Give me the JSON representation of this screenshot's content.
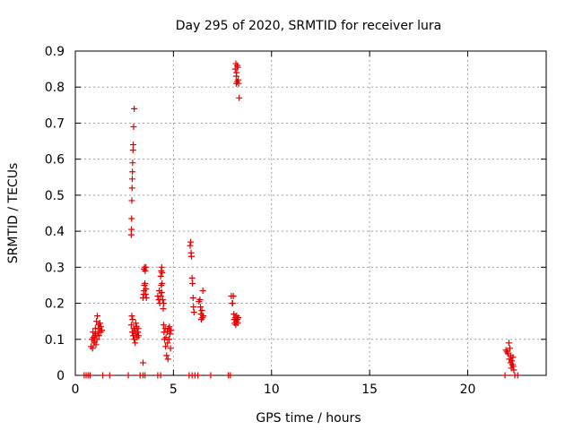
{
  "chart_data": {
    "type": "scatter",
    "title": "Day 295 of 2020, SRMTID for receiver lura",
    "xlabel": "GPS time / hours",
    "ylabel": "SRMTID / TECUs",
    "xlim": [
      0,
      24
    ],
    "ylim": [
      0,
      0.9
    ],
    "xticks": [
      0,
      5,
      10,
      15,
      20
    ],
    "yticks": [
      0,
      0.1,
      0.2,
      0.3,
      0.4,
      0.5,
      0.6,
      0.7,
      0.8,
      0.9
    ],
    "xtick_labels": [
      "0",
      "5",
      "10",
      "15",
      "20"
    ],
    "ytick_labels": [
      "0",
      "0.1",
      "0.2",
      "0.3",
      "0.4",
      "0.5",
      "0.6",
      "0.7",
      "0.8",
      "0.9"
    ],
    "grid": true,
    "marker": "+",
    "color": "#e00000",
    "series": [
      {
        "name": "SRMTID",
        "points": [
          [
            0.45,
            0
          ],
          [
            0.55,
            0
          ],
          [
            0.65,
            0
          ],
          [
            0.75,
            0
          ],
          [
            1.4,
            0
          ],
          [
            1.75,
            0
          ],
          [
            2.7,
            0
          ],
          [
            3.3,
            0
          ],
          [
            3.45,
            0
          ],
          [
            3.55,
            0
          ],
          [
            4.2,
            0
          ],
          [
            4.35,
            0
          ],
          [
            5.8,
            0
          ],
          [
            5.95,
            0
          ],
          [
            6.1,
            0
          ],
          [
            6.25,
            0
          ],
          [
            6.9,
            0
          ],
          [
            7.8,
            0
          ],
          [
            7.9,
            0
          ],
          [
            21.9,
            0
          ],
          [
            22.4,
            0
          ],
          [
            22.55,
            0
          ],
          [
            0.8,
            0.08
          ],
          [
            0.85,
            0.1
          ],
          [
            0.88,
            0.075
          ],
          [
            0.9,
            0.12
          ],
          [
            0.95,
            0.095
          ],
          [
            1.0,
            0.11
          ],
          [
            1.02,
            0.13
          ],
          [
            1.05,
            0.085
          ],
          [
            1.08,
            0.15
          ],
          [
            1.1,
            0.1
          ],
          [
            1.12,
            0.165
          ],
          [
            1.15,
            0.12
          ],
          [
            1.18,
            0.14
          ],
          [
            1.2,
            0.11
          ],
          [
            1.22,
            0.13
          ],
          [
            1.25,
            0.145
          ],
          [
            1.28,
            0.12
          ],
          [
            1.3,
            0.135
          ],
          [
            1.35,
            0.125
          ],
          [
            0.92,
            0.105
          ],
          [
            0.97,
            0.09
          ],
          [
            1.03,
            0.115
          ],
          [
            2.85,
            0.14
          ],
          [
            2.88,
            0.165
          ],
          [
            2.9,
            0.12
          ],
          [
            2.92,
            0.155
          ],
          [
            2.95,
            0.11
          ],
          [
            2.98,
            0.13
          ],
          [
            3.0,
            0.1
          ],
          [
            3.02,
            0.125
          ],
          [
            3.05,
            0.09
          ],
          [
            3.08,
            0.145
          ],
          [
            3.1,
            0.115
          ],
          [
            3.12,
            0.135
          ],
          [
            3.15,
            0.105
          ],
          [
            3.18,
            0.12
          ],
          [
            3.2,
            0.13
          ],
          [
            3.22,
            0.11
          ],
          [
            2.85,
            0.39
          ],
          [
            2.86,
            0.405
          ],
          [
            2.87,
            0.435
          ],
          [
            2.88,
            0.485
          ],
          [
            2.89,
            0.52
          ],
          [
            2.9,
            0.545
          ],
          [
            2.91,
            0.565
          ],
          [
            2.92,
            0.59
          ],
          [
            2.94,
            0.625
          ],
          [
            2.95,
            0.64
          ],
          [
            2.97,
            0.69
          ],
          [
            3.0,
            0.74
          ],
          [
            3.45,
            0.035
          ],
          [
            3.45,
            0.215
          ],
          [
            3.48,
            0.225
          ],
          [
            3.5,
            0.235
          ],
          [
            3.52,
            0.25
          ],
          [
            3.55,
            0.255
          ],
          [
            3.58,
            0.225
          ],
          [
            3.6,
            0.24
          ],
          [
            3.62,
            0.215
          ],
          [
            3.5,
            0.295
          ],
          [
            3.53,
            0.3
          ],
          [
            3.56,
            0.29
          ],
          [
            3.6,
            0.3
          ],
          [
            4.2,
            0.22
          ],
          [
            4.25,
            0.21
          ],
          [
            4.28,
            0.235
          ],
          [
            4.3,
            0.2
          ],
          [
            4.35,
            0.22
          ],
          [
            4.38,
            0.25
          ],
          [
            4.4,
            0.23
          ],
          [
            4.42,
            0.255
          ],
          [
            4.45,
            0.21
          ],
          [
            4.48,
            0.185
          ],
          [
            4.5,
            0.2
          ],
          [
            4.35,
            0.275
          ],
          [
            4.38,
            0.29
          ],
          [
            4.4,
            0.3
          ],
          [
            4.42,
            0.285
          ],
          [
            4.5,
            0.14
          ],
          [
            4.52,
            0.12
          ],
          [
            4.55,
            0.1
          ],
          [
            4.58,
            0.13
          ],
          [
            4.6,
            0.08
          ],
          [
            4.62,
            0.105
          ],
          [
            4.65,
            0.055
          ],
          [
            4.68,
            0.12
          ],
          [
            4.7,
            0.09
          ],
          [
            4.72,
            0.045
          ],
          [
            4.75,
            0.13
          ],
          [
            4.78,
            0.1
          ],
          [
            4.8,
            0.135
          ],
          [
            4.82,
            0.115
          ],
          [
            4.85,
            0.075
          ],
          [
            4.88,
            0.125
          ],
          [
            5.85,
            0.36
          ],
          [
            5.88,
            0.37
          ],
          [
            5.9,
            0.34
          ],
          [
            5.92,
            0.33
          ],
          [
            5.95,
            0.27
          ],
          [
            5.97,
            0.255
          ],
          [
            6.0,
            0.215
          ],
          [
            6.02,
            0.19
          ],
          [
            6.05,
            0.175
          ],
          [
            6.3,
            0.205
          ],
          [
            6.35,
            0.21
          ],
          [
            6.38,
            0.19
          ],
          [
            6.4,
            0.17
          ],
          [
            6.42,
            0.155
          ],
          [
            6.45,
            0.18
          ],
          [
            6.48,
            0.16
          ],
          [
            6.5,
            0.235
          ],
          [
            6.52,
            0.165
          ],
          [
            7.95,
            0.22
          ],
          [
            8.0,
            0.2
          ],
          [
            8.02,
            0.2
          ],
          [
            8.05,
            0.22
          ],
          [
            8.08,
            0.17
          ],
          [
            8.1,
            0.155
          ],
          [
            8.12,
            0.145
          ],
          [
            8.15,
            0.16
          ],
          [
            8.18,
            0.14
          ],
          [
            8.2,
            0.15
          ],
          [
            8.22,
            0.165
          ],
          [
            8.25,
            0.155
          ],
          [
            8.28,
            0.145
          ],
          [
            8.3,
            0.16
          ],
          [
            8.15,
            0.85
          ],
          [
            8.18,
            0.865
          ],
          [
            8.2,
            0.83
          ],
          [
            8.22,
            0.84
          ],
          [
            8.25,
            0.815
          ],
          [
            8.28,
            0.855
          ],
          [
            8.3,
            0.82
          ],
          [
            8.32,
            0.81
          ],
          [
            8.35,
            0.77
          ],
          [
            8.2,
            0.81
          ],
          [
            8.25,
            0.86
          ],
          [
            21.95,
            0.07
          ],
          [
            22.0,
            0.065
          ],
          [
            22.05,
            0.06
          ],
          [
            22.1,
            0.09
          ],
          [
            22.12,
            0.045
          ],
          [
            22.15,
            0.075
          ],
          [
            22.18,
            0.035
          ],
          [
            22.2,
            0.055
          ],
          [
            22.22,
            0.02
          ],
          [
            22.25,
            0.04
          ],
          [
            22.28,
            0.03
          ],
          [
            22.3,
            0.05
          ],
          [
            22.32,
            0.025
          ],
          [
            22.35,
            0.015
          ]
        ]
      }
    ]
  }
}
